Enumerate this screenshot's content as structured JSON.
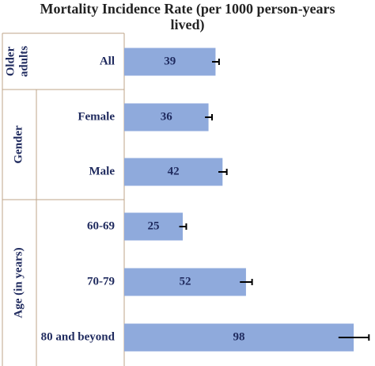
{
  "chart_data": {
    "type": "bar",
    "orientation": "horizontal",
    "title": "Mortality Incidence Rate (per 1000 person-years lived)",
    "title_lines": [
      "Mortality Incidence Rate (per 1000 person-years",
      "lived)"
    ],
    "xlim": [
      0,
      100
    ],
    "grid": false,
    "legend": "none",
    "colors": {
      "bar": "#8faadc",
      "text": "#1f2a5e",
      "error": "#000000",
      "frame": "#bfa58a"
    },
    "groups": [
      {
        "label": "Older adults",
        "label_lines": [
          "Older",
          "adults"
        ],
        "categories": [
          "All"
        ]
      },
      {
        "label": "Gender",
        "label_lines": [
          "Gender"
        ],
        "categories": [
          "Female",
          "Male"
        ]
      },
      {
        "label": "Age (in years)",
        "label_lines": [
          "Age (in years)"
        ],
        "categories": [
          "60-69",
          "70-79",
          "80 and beyond"
        ]
      }
    ],
    "categories": [
      "All",
      "Female",
      "Male",
      "60-69",
      "70-79",
      "80 and beyond"
    ],
    "values": [
      39,
      36,
      42,
      25,
      52,
      98
    ],
    "value_labels": [
      "39",
      "36",
      "42",
      "25",
      "52",
      "98"
    ],
    "error_bars": [
      1.5,
      1.5,
      1.8,
      1.5,
      2.6,
      6.5
    ]
  }
}
